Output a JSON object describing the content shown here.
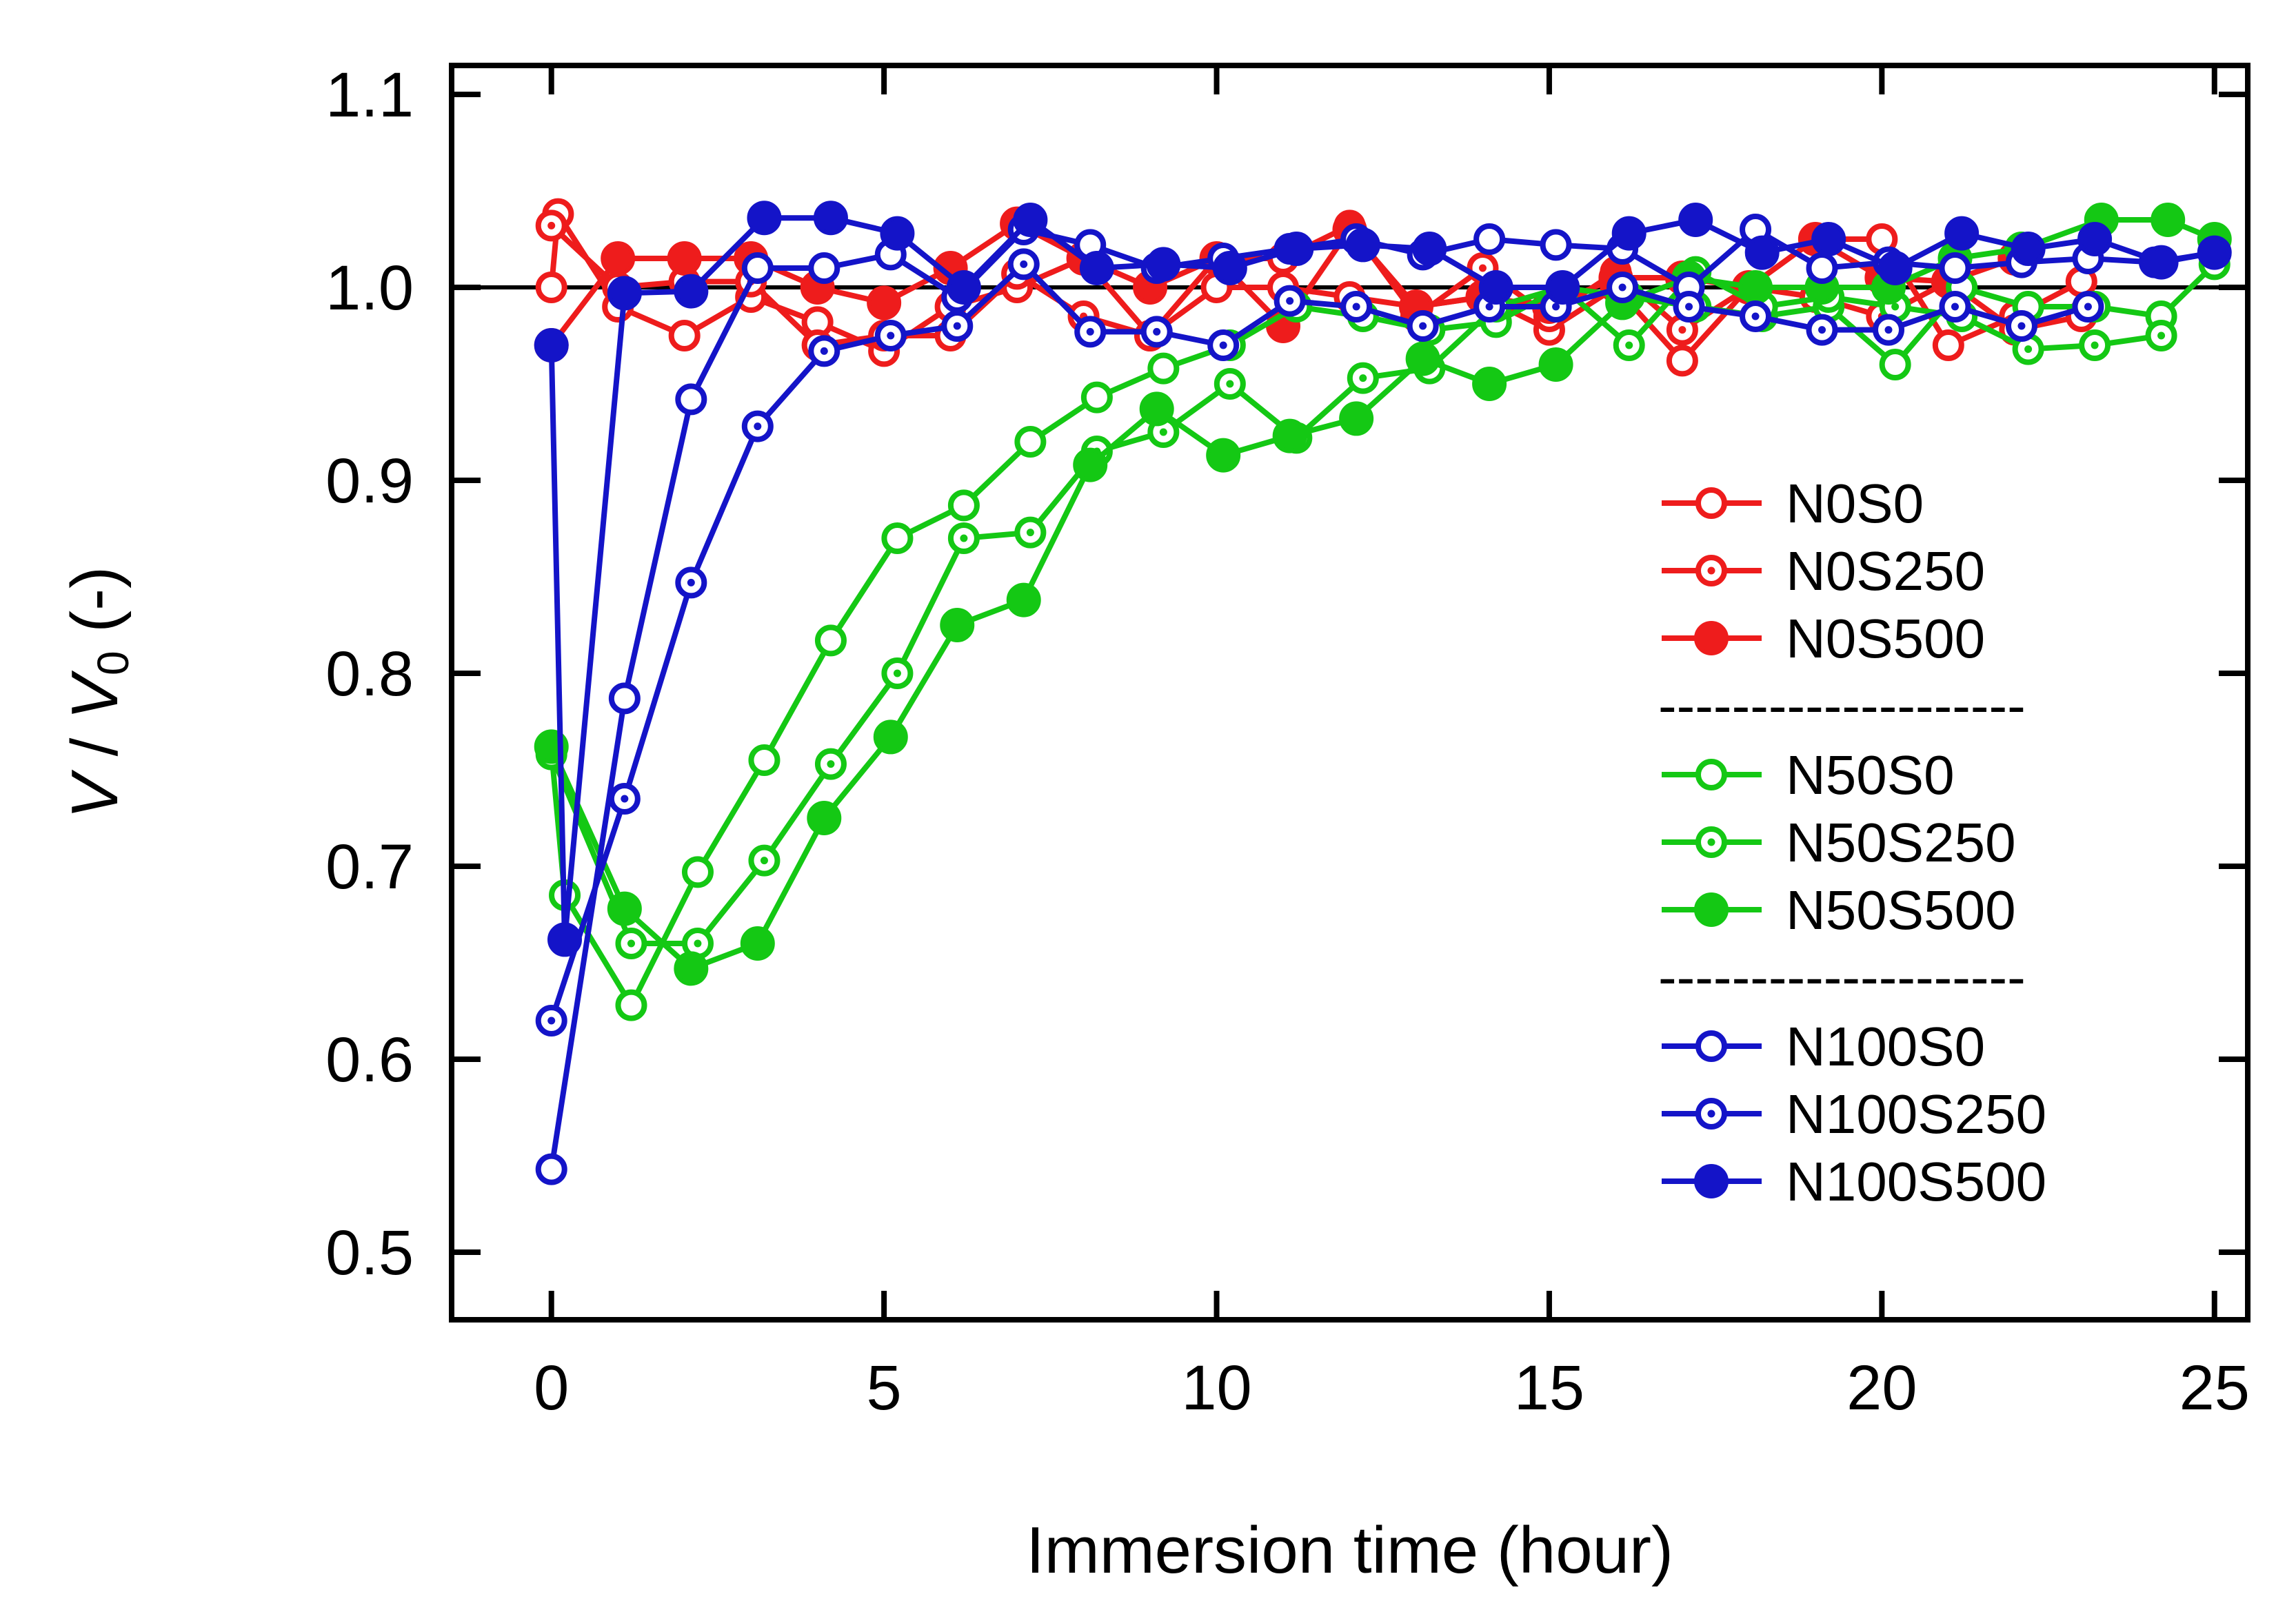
{
  "chart_data": {
    "type": "line",
    "title": "",
    "xlabel": "Immersion time (hour)",
    "ylabel": {
      "v": "V",
      "sep": " / ",
      "v0": "V",
      "sub": "0",
      "unit": " (-)"
    },
    "xlim": [
      -1.5,
      25.5
    ],
    "ylim": [
      0.465,
      1.115
    ],
    "xticks": [
      0,
      5,
      10,
      15,
      20,
      25
    ],
    "xtick_labels": [
      "0",
      "5",
      "10",
      "15",
      "20",
      "25"
    ],
    "yticks": [
      0.5,
      0.6,
      0.7,
      0.8,
      0.9,
      1.0,
      1.1
    ],
    "ytick_labels": [
      "0.5",
      "0.6",
      "0.7",
      "0.8",
      "0.9",
      "1.0",
      "1.1"
    ],
    "reference_line": 1.0,
    "legend": {
      "position": "right-center",
      "separator_text": "--------------------"
    },
    "series": [
      {
        "name": "N0S0",
        "color": "#ee1c1c",
        "marker": "open",
        "x": [
          0,
          0.1,
          1,
          2,
          3,
          4,
          5,
          6,
          7,
          8,
          9,
          10,
          11,
          12,
          13,
          14,
          15,
          16,
          17,
          18,
          19,
          20,
          21,
          22,
          23
        ],
        "y": [
          1.0,
          1.038,
          0.99,
          0.975,
          0.995,
          0.982,
          0.967,
          0.99,
          1.0,
          1.015,
          0.975,
          1.0,
          1.0,
          0.995,
          0.99,
          0.995,
          0.978,
          1.0,
          0.962,
          1.0,
          1.025,
          1.025,
          0.97,
          0.985,
          1.003
        ]
      },
      {
        "name": "N0S250",
        "color": "#ee1c1c",
        "marker": "dot",
        "x": [
          0,
          1,
          2,
          3,
          4,
          5,
          6,
          7,
          8,
          9,
          10,
          11,
          12,
          13,
          14,
          15,
          16,
          17,
          18,
          19,
          20,
          21,
          22,
          23
        ],
        "y": [
          1.032,
          1.0,
          1.003,
          1.003,
          0.97,
          0.975,
          0.975,
          1.007,
          0.985,
          0.975,
          1.015,
          1.015,
          1.032,
          0.985,
          1.01,
          0.985,
          1.008,
          0.978,
          1.0,
          0.995,
          0.985,
          1.003,
          0.978,
          0.985
        ]
      },
      {
        "name": "N0S500",
        "color": "#ee1c1c",
        "marker": "filled",
        "x": [
          0,
          1,
          2,
          3,
          4,
          5,
          6,
          7,
          8,
          9,
          10,
          11,
          12,
          13,
          14,
          15,
          16,
          17,
          18,
          19,
          20,
          21,
          22
        ],
        "y": [
          0.97,
          1.015,
          1.015,
          1.015,
          1.0,
          0.992,
          1.01,
          1.033,
          1.015,
          1.0,
          1.015,
          0.98,
          1.03,
          0.99,
          0.995,
          0.99,
          1.005,
          1.005,
          1.0,
          1.025,
          1.005,
          1.003,
          1.015
        ]
      },
      {
        "name": "N50S0",
        "color": "#14c814",
        "marker": "open",
        "x": [
          0,
          0.2,
          1.2,
          2.2,
          3.2,
          4.2,
          5.2,
          6.2,
          7.2,
          8.2,
          9.2,
          10.2,
          11.2,
          12.2,
          13.2,
          14.2,
          15.2,
          16.2,
          17.2,
          18.2,
          19.2,
          20.2,
          21.2,
          22.2,
          23.2,
          24.2,
          25
        ],
        "y": [
          0.76,
          0.685,
          0.628,
          0.697,
          0.755,
          0.817,
          0.87,
          0.887,
          0.92,
          0.943,
          0.958,
          0.97,
          0.99,
          0.985,
          0.978,
          0.982,
          1.0,
          0.995,
          0.99,
          0.985,
          0.99,
          0.96,
          1.0,
          0.99,
          0.99,
          0.985,
          1.012
        ]
      },
      {
        "name": "N50S250",
        "color": "#14c814",
        "marker": "dot",
        "x": [
          0,
          1.2,
          2.2,
          3.2,
          4.2,
          5.2,
          6.2,
          7.2,
          8.2,
          9.2,
          10.2,
          11.2,
          12.2,
          13.2,
          14.2,
          15.2,
          16.2,
          17.2,
          18.2,
          19.2,
          20.2,
          21.2,
          22.2,
          23.2,
          24.2
        ],
        "y": [
          0.758,
          0.66,
          0.66,
          0.703,
          0.753,
          0.8,
          0.87,
          0.873,
          0.915,
          0.925,
          0.95,
          0.922,
          0.953,
          0.958,
          0.99,
          1.0,
          0.97,
          1.008,
          0.99,
          0.995,
          0.99,
          0.985,
          0.968,
          0.97,
          0.975
        ]
      },
      {
        "name": "N50S500",
        "color": "#14c814",
        "marker": "filled",
        "x": [
          0,
          1.1,
          2.1,
          3.1,
          4.1,
          5.1,
          6.1,
          7.1,
          8.1,
          9.1,
          10.1,
          11.1,
          12.1,
          13.1,
          14.1,
          15.1,
          16.1,
          17.1,
          18.1,
          19.1,
          20.1,
          21.1,
          22.1,
          23.3,
          24.3,
          25
        ],
        "y": [
          0.762,
          0.678,
          0.647,
          0.66,
          0.725,
          0.767,
          0.825,
          0.838,
          0.908,
          0.937,
          0.913,
          0.923,
          0.932,
          0.963,
          0.95,
          0.96,
          0.992,
          1.005,
          1.0,
          1.0,
          1.0,
          1.015,
          1.02,
          1.035,
          1.035,
          1.025
        ]
      },
      {
        "name": "N100S0",
        "color": "#1414c8",
        "marker": "open",
        "x": [
          0,
          1.1,
          2.1,
          3.1,
          4.1,
          5.1,
          6.1,
          7.1,
          8.1,
          9.1,
          10.1,
          11.1,
          12.1,
          13.1,
          14.1,
          15.1,
          16.1,
          17.1,
          18.1,
          19.1,
          20.1,
          21.1,
          22.1,
          23.1,
          24.1,
          25
        ],
        "y": [
          0.543,
          0.787,
          0.942,
          1.01,
          1.01,
          1.017,
          0.995,
          1.03,
          1.022,
          1.01,
          1.015,
          1.02,
          1.025,
          1.017,
          1.025,
          1.022,
          1.02,
          1.0,
          1.03,
          1.01,
          1.013,
          1.01,
          1.013,
          1.015,
          1.013,
          1.018
        ]
      },
      {
        "name": "N100S250",
        "color": "#1414c8",
        "marker": "dot",
        "x": [
          0,
          1.1,
          2.1,
          3.1,
          4.1,
          5.1,
          6.1,
          7.1,
          8.1,
          9.1,
          10.1,
          11.1,
          12.1,
          13.1,
          14.1,
          15.1,
          16.1,
          17.1,
          18.1,
          19.1,
          20.1,
          21.1,
          22.1,
          23.1
        ],
        "y": [
          0.62,
          0.735,
          0.847,
          0.928,
          0.967,
          0.975,
          0.98,
          1.012,
          0.977,
          0.977,
          0.97,
          0.993,
          0.99,
          0.98,
          0.99,
          0.99,
          1.0,
          0.99,
          0.985,
          0.978,
          0.978,
          0.99,
          0.98,
          0.99
        ]
      },
      {
        "name": "N100S500",
        "color": "#1414c8",
        "marker": "filled",
        "x": [
          0,
          0.2,
          1.1,
          2.1,
          3.2,
          4.2,
          5.2,
          6.2,
          7.2,
          8.2,
          9.2,
          10.2,
          11.2,
          12.2,
          13.2,
          14.2,
          15.2,
          16.2,
          17.2,
          18.2,
          19.2,
          20.2,
          21.2,
          22.2,
          23.2,
          24.2,
          25
        ],
        "y": [
          0.97,
          0.662,
          0.997,
          0.998,
          1.036,
          1.036,
          1.028,
          1.0,
          1.035,
          1.01,
          1.012,
          1.01,
          1.02,
          1.022,
          1.02,
          1.0,
          1.0,
          1.028,
          1.035,
          1.018,
          1.025,
          1.01,
          1.028,
          1.02,
          1.025,
          1.013,
          1.018
        ]
      }
    ]
  }
}
